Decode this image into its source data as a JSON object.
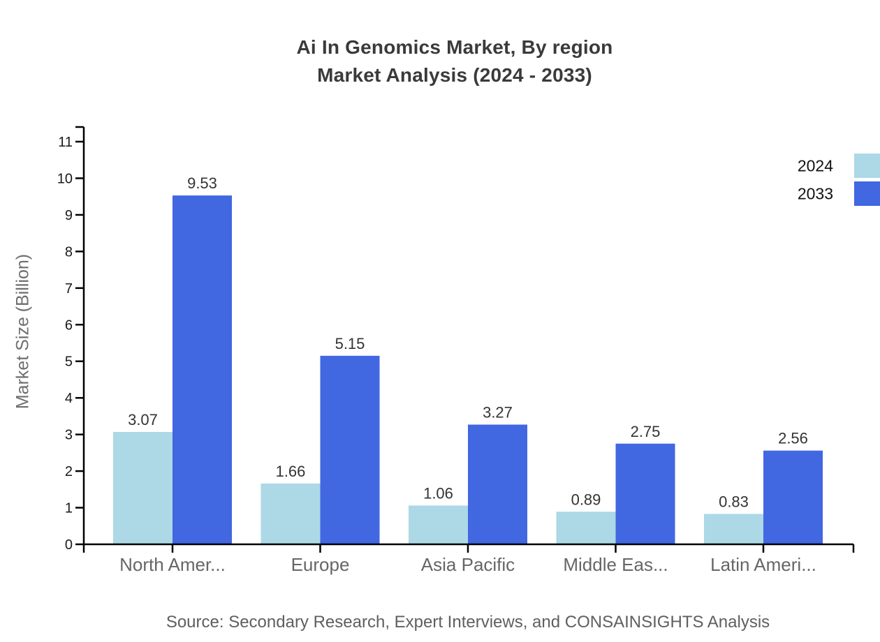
{
  "title": {
    "line1": "Ai In Genomics Market, By region",
    "line2": "Market Analysis (2024 - 2033)"
  },
  "y_axis_label": "Market Size (Billion)",
  "source_note": "Source: Secondary Research, Expert Interviews, and CONSAINSIGHTS Analysis",
  "legend": [
    {
      "label": "2024",
      "color": "#add8e6"
    },
    {
      "label": "2033",
      "color": "#4167e1"
    }
  ],
  "chart_data": {
    "type": "bar",
    "title": "Ai In Genomics Market, By region Market Analysis (2024 - 2033)",
    "categories": [
      "North Amer...",
      "Europe",
      "Asia Pacific",
      "Middle Eas...",
      "Latin Ameri..."
    ],
    "series": [
      {
        "name": "2024",
        "color": "#add8e6",
        "values": [
          3.07,
          1.66,
          1.06,
          0.89,
          0.83
        ]
      },
      {
        "name": "2033",
        "color": "#4167e1",
        "values": [
          9.53,
          5.15,
          3.27,
          2.75,
          2.56
        ]
      }
    ],
    "xlabel": "",
    "ylabel": "Market Size (Billion)",
    "ylim": [
      0,
      11
    ],
    "y_ticks": [
      0,
      1,
      2,
      3,
      4,
      5,
      6,
      7,
      8,
      9,
      10,
      11
    ],
    "grid": false,
    "legend_position": "top-right",
    "bar_value_labels": true
  },
  "colors": {
    "axis": "#000000",
    "tick_label": "#1a1a1a",
    "category_label": "#666666",
    "value_label": "#333333",
    "title": "#3a3a3a",
    "y_axis_label": "#6e6e6e",
    "source": "#5f5f5f",
    "background": "#ffffff"
  }
}
